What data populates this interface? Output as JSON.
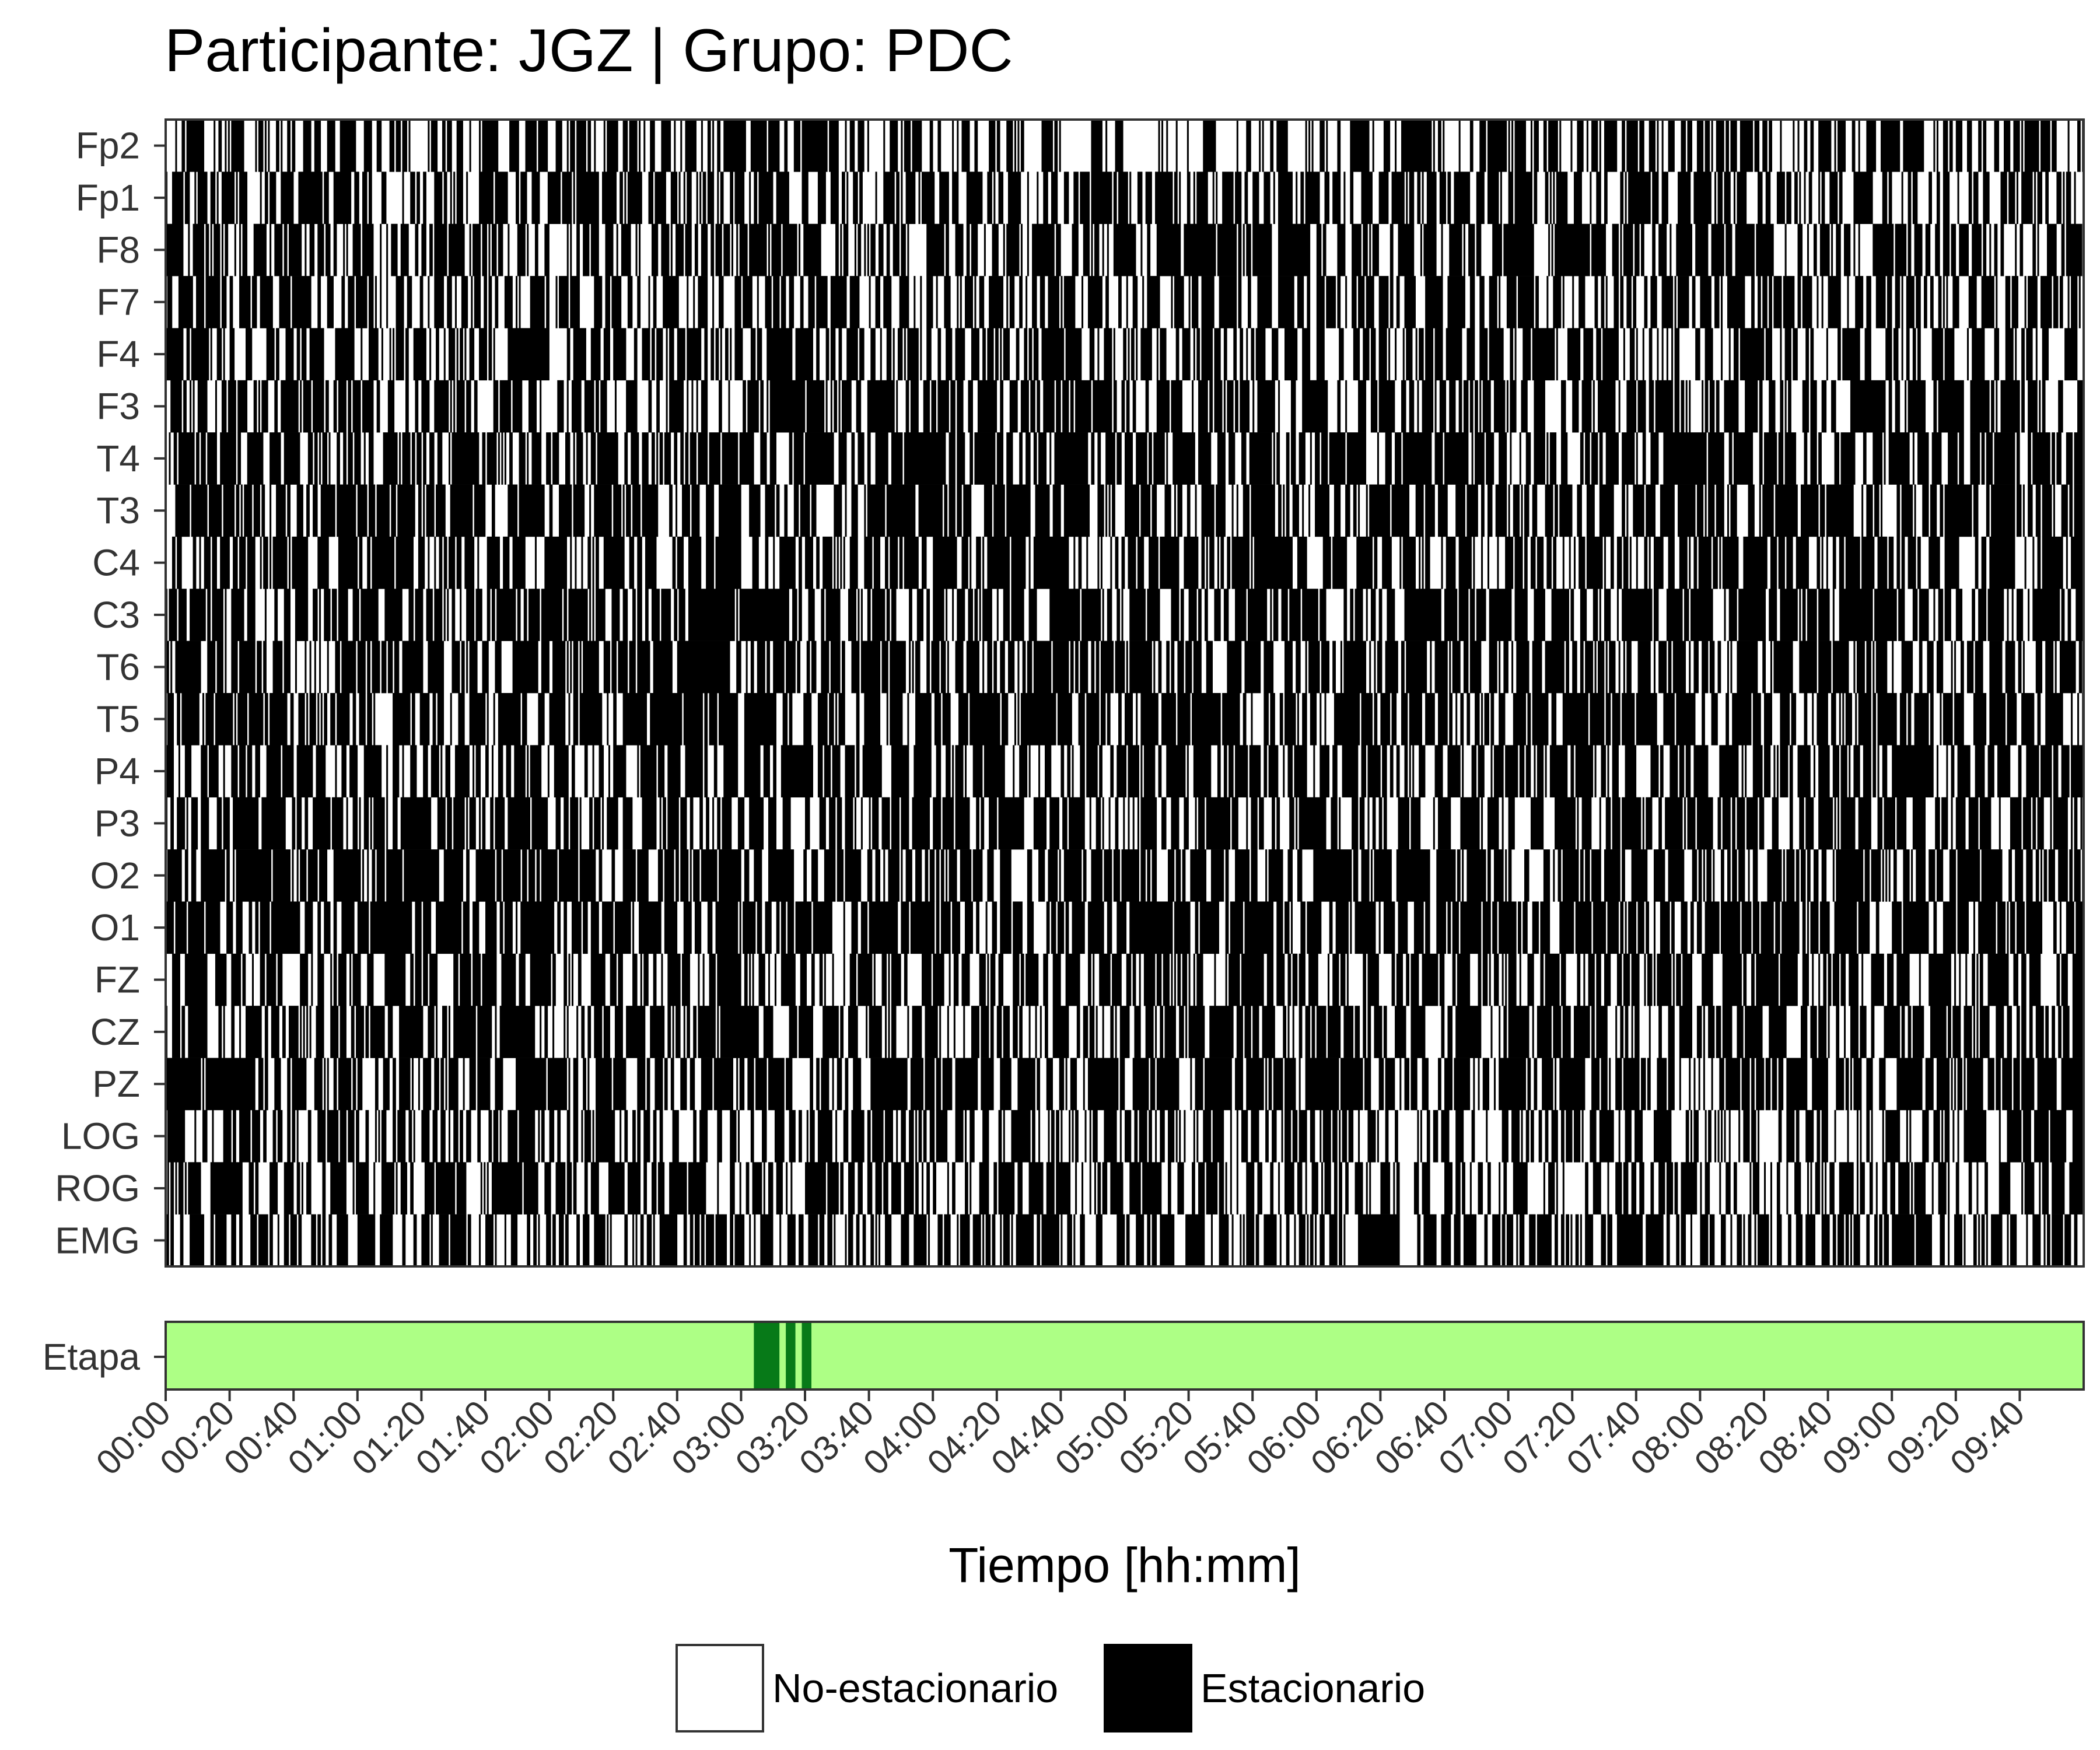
{
  "chart_data": {
    "type": "heatmap",
    "title": "Participante: JGZ | Grupo: PDC",
    "xlabel": "Tiempo [hh:mm]",
    "channels": [
      "Fp2",
      "Fp1",
      "F8",
      "F7",
      "F4",
      "F3",
      "T4",
      "T3",
      "C4",
      "C3",
      "T6",
      "T5",
      "P4",
      "P3",
      "O2",
      "O1",
      "FZ",
      "CZ",
      "PZ",
      "LOG",
      "ROG",
      "EMG"
    ],
    "stage_label": "Etapa",
    "x_ticks": [
      "00:00",
      "00:20",
      "00:40",
      "01:00",
      "01:20",
      "01:40",
      "02:00",
      "02:20",
      "02:40",
      "03:00",
      "03:20",
      "03:40",
      "04:00",
      "04:20",
      "04:40",
      "05:00",
      "05:20",
      "05:40",
      "06:00",
      "06:20",
      "06:40",
      "07:00",
      "07:20",
      "07:40",
      "08:00",
      "08:20",
      "08:40",
      "09:00",
      "09:20",
      "09:40"
    ],
    "x_range_minutes": [
      0,
      600
    ],
    "epoch_seconds": 30,
    "legend": [
      {
        "label": "No-estacionario",
        "color": "#ffffff"
      },
      {
        "label": "Estacionario",
        "color": "#000000"
      }
    ],
    "legend_position": "bottom",
    "stage_colors": {
      "base": "#adff85",
      "highlight": "#077a18"
    },
    "stage_highlight_minutes": [
      [
        184,
        192
      ],
      [
        194,
        197
      ],
      [
        199,
        202
      ]
    ],
    "stationary_fraction_by_channel": {
      "Fp2": 0.55,
      "Fp1": 0.6,
      "F8": 0.6,
      "F7": 0.62,
      "F4": 0.6,
      "F3": 0.62,
      "T4": 0.68,
      "T3": 0.72,
      "C4": 0.66,
      "C3": 0.68,
      "T6": 0.68,
      "T5": 0.68,
      "P4": 0.66,
      "P3": 0.68,
      "O2": 0.72,
      "O1": 0.72,
      "FZ": 0.65,
      "CZ": 0.64,
      "PZ": 0.68,
      "LOG": 0.5,
      "ROG": 0.56,
      "EMG": 0.58
    }
  }
}
